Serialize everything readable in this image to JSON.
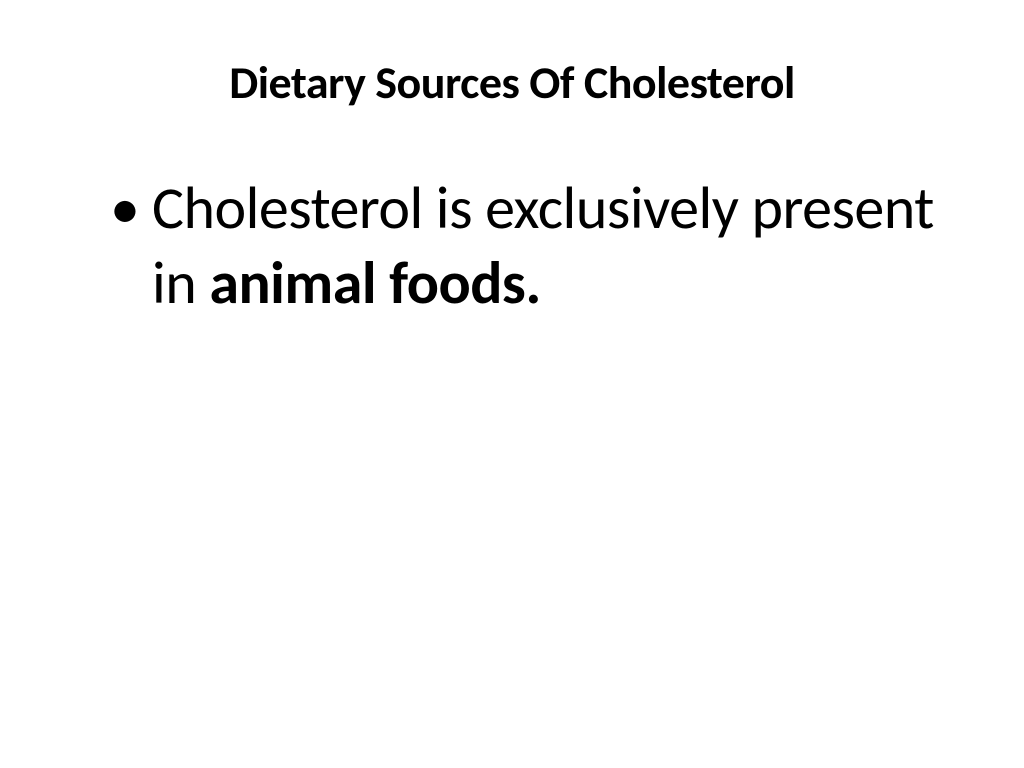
{
  "slide": {
    "title": "Dietary Sources Of Cholesterol",
    "bullet_text_part1": "Cholesterol is exclusively present in ",
    "bullet_text_part2": "animal foods.",
    "background_color": "#ffffff",
    "text_color": "#000000",
    "title_fontsize": 46,
    "body_fontsize": 60,
    "font_family": "Calibri"
  }
}
